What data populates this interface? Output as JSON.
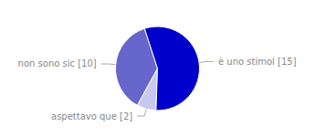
{
  "chart_data": {
    "type": "pie",
    "categories": [
      "non sono sic [10]",
      "aspettavo que [2]",
      "è uno stimol [15]"
    ],
    "values": [
      10,
      2,
      15
    ],
    "colors": [
      "#6666cc",
      "#c8c8ee",
      "#0000cc"
    ]
  }
}
